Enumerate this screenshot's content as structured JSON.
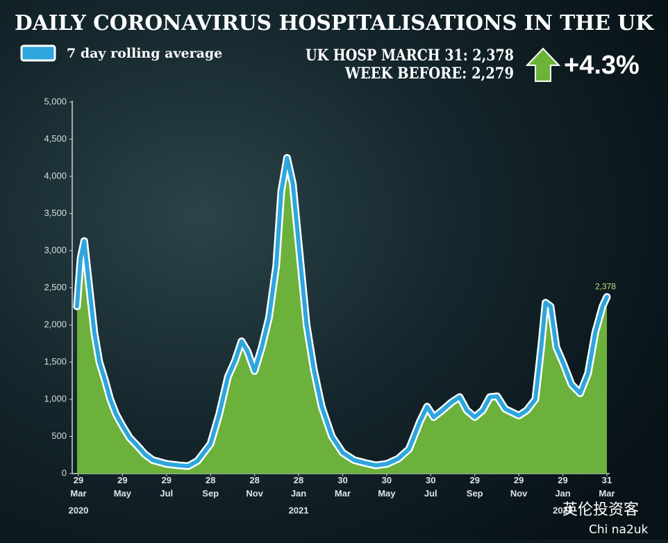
{
  "chart_data": {
    "type": "area-line",
    "title": "DAILY CORONAVIRUS HOSPITALISATIONS IN THE UK",
    "stats": {
      "line1": "UK HOSP MARCH 31: 2,378",
      "line2": "WEEK BEFORE: 2,279",
      "change": "+4.3%"
    },
    "x": [
      "2020-03-27",
      "2020-04-01",
      "2020-04-06",
      "2020-04-12",
      "2020-04-20",
      "2020-04-27",
      "2020-05-05",
      "2020-05-12",
      "2020-05-20",
      "2020-05-29",
      "2020-06-08",
      "2020-06-18",
      "2020-06-29",
      "2020-07-10",
      "2020-07-29",
      "2020-08-15",
      "2020-08-28",
      "2020-09-10",
      "2020-09-28",
      "2020-10-10",
      "2020-10-22",
      "2020-11-01",
      "2020-11-10",
      "2020-11-18",
      "2020-11-28",
      "2020-12-08",
      "2020-12-18",
      "2020-12-28",
      "2021-01-04",
      "2021-01-12",
      "2021-01-20",
      "2021-01-28",
      "2021-02-08",
      "2021-02-18",
      "2021-03-01",
      "2021-03-15",
      "2021-03-30",
      "2021-04-15",
      "2021-05-01",
      "2021-05-15",
      "2021-05-30",
      "2021-06-15",
      "2021-06-30",
      "2021-07-15",
      "2021-07-25",
      "2021-08-03",
      "2021-08-15",
      "2021-08-28",
      "2021-09-08",
      "2021-09-18",
      "2021-09-29",
      "2021-10-10",
      "2021-10-20",
      "2021-10-30",
      "2021-11-10",
      "2021-11-29",
      "2021-12-10",
      "2021-12-22",
      "2021-12-30",
      "2022-01-05",
      "2022-01-12",
      "2022-01-20",
      "2022-01-29",
      "2022-02-10",
      "2022-02-22",
      "2022-03-05",
      "2022-03-15",
      "2022-03-25",
      "2022-03-31"
    ],
    "series": [
      {
        "name": "7 day rolling average",
        "color": "#2ea6dd",
        "fill_color": "#6cb13b",
        "values": [
          2250,
          2900,
          3130,
          2600,
          1900,
          1500,
          1250,
          1000,
          800,
          640,
          480,
          380,
          260,
          180,
          130,
          110,
          100,
          170,
          400,
          800,
          1300,
          1520,
          1780,
          1650,
          1380,
          1700,
          2100,
          2800,
          3800,
          4250,
          3900,
          3100,
          2000,
          1400,
          900,
          500,
          280,
          180,
          140,
          110,
          130,
          200,
          330,
          700,
          900,
          760,
          850,
          960,
          1030,
          850,
          760,
          850,
          1030,
          1040,
          870,
          780,
          850,
          1000,
          1700,
          2300,
          2250,
          1700,
          1500,
          1200,
          1080,
          1350,
          1900,
          2250,
          2378
        ]
      }
    ],
    "annotations": [
      {
        "text": "2,378",
        "x": "2022-03-31",
        "y": 2378
      }
    ],
    "xlim": [
      "2020-03-25",
      "2022-04-01"
    ],
    "xticks": [
      {
        "value": "2020-03-29",
        "label": "29 Mar"
      },
      {
        "value": "2020-05-29",
        "label": "29 May"
      },
      {
        "value": "2020-07-29",
        "label": "29 Jul"
      },
      {
        "value": "2020-09-28",
        "label": "28 Sep"
      },
      {
        "value": "2020-11-28",
        "label": "28 Nov"
      },
      {
        "value": "2021-01-28",
        "label": "28 Jan"
      },
      {
        "value": "2021-03-30",
        "label": "30 Mar"
      },
      {
        "value": "2021-05-30",
        "label": "30 May"
      },
      {
        "value": "2021-07-30",
        "label": "30 Jul"
      },
      {
        "value": "2021-09-29",
        "label": "29 Sep"
      },
      {
        "value": "2021-11-29",
        "label": "29 Nov"
      },
      {
        "value": "2022-01-29",
        "label": "29 Jan"
      },
      {
        "value": "2022-03-31",
        "label": "31 Mar"
      }
    ],
    "year_labels": [
      {
        "value": "2020-03-29",
        "label": "2020"
      },
      {
        "value": "2021-01-28",
        "label": "2021"
      },
      {
        "value": "2022-01-29",
        "label": "2022"
      }
    ],
    "ylim": [
      0,
      5000
    ],
    "yticks": [
      0,
      500,
      {
        "value": 1000,
        "label": "1,000"
      },
      {
        "value": 1500,
        "label": "1,500"
      },
      {
        "value": 2000,
        "label": "2,000"
      },
      {
        "value": 2500,
        "label": "2,500"
      },
      {
        "value": 3000,
        "label": "3,000"
      },
      {
        "value": 3500,
        "label": "3,500"
      },
      {
        "value": 4000,
        "label": "4,000"
      },
      {
        "value": 4500,
        "label": "4,500"
      },
      {
        "value": 5000,
        "label": "5,000"
      }
    ],
    "grid": false,
    "watermark": {
      "text": "英伦投资客",
      "handle": "Chi na2uk"
    }
  }
}
